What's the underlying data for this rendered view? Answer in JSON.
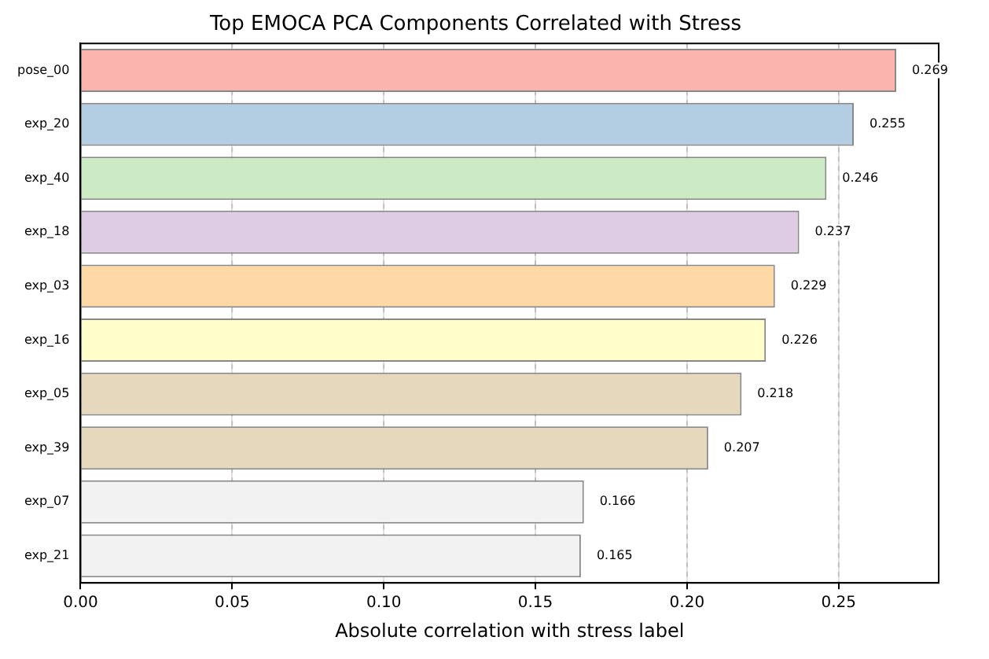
{
  "chart_data": {
    "type": "bar",
    "orientation": "horizontal",
    "title": "Top EMOCA PCA Components Correlated with Stress",
    "xlabel": "Absolute correlation with stress label",
    "categories": [
      "pose_00",
      "exp_20",
      "exp_40",
      "exp_18",
      "exp_03",
      "exp_16",
      "exp_05",
      "exp_39",
      "exp_07",
      "exp_21"
    ],
    "values": [
      0.269,
      0.255,
      0.246,
      0.237,
      0.229,
      0.226,
      0.218,
      0.207,
      0.166,
      0.165
    ],
    "colors": [
      "#fbb4ae",
      "#b3cde3",
      "#ccebc5",
      "#decbe4",
      "#fed9a6",
      "#ffffcc",
      "#e5d8bd",
      "#e5d8bd",
      "#f2f2f2",
      "#f2f2f2"
    ],
    "value_labels": [
      "0.269",
      "0.255",
      "0.246",
      "0.237",
      "0.229",
      "0.226",
      "0.218",
      "0.207",
      "0.166",
      "0.165"
    ],
    "xlim": [
      0,
      0.283
    ],
    "xticks": [
      {
        "value": 0,
        "label": "0.00"
      },
      {
        "value": 0.05,
        "label": "0.05"
      },
      {
        "value": 0.1,
        "label": "0.10"
      },
      {
        "value": 0.15,
        "label": "0.15"
      },
      {
        "value": 0.2,
        "label": "0.20"
      },
      {
        "value": 0.25,
        "label": "0.25"
      }
    ],
    "grid": "x"
  }
}
